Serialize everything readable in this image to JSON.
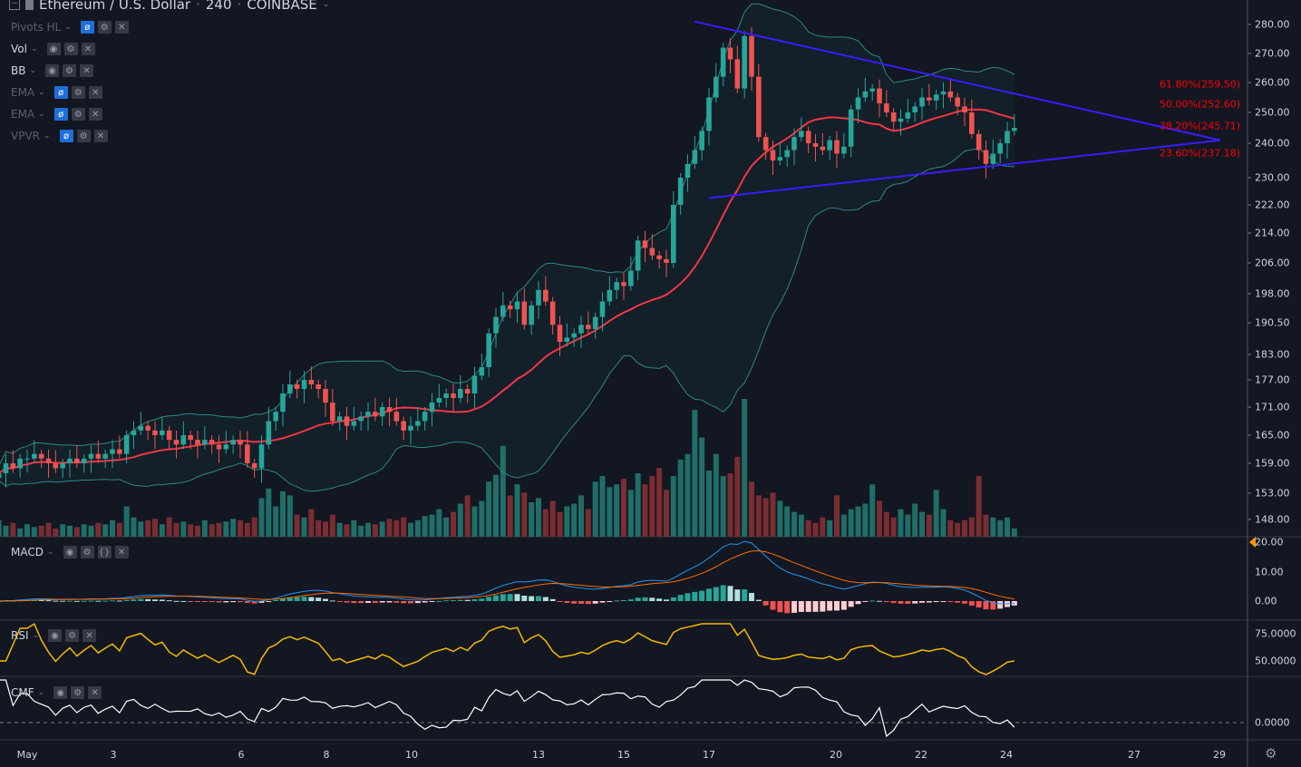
{
  "header": {
    "symbol": "Ethereum / U.S. Dollar",
    "interval": "240",
    "exchange": "COINBASE"
  },
  "indicators": [
    {
      "label": "Pivots HL",
      "hidden": true
    },
    {
      "label": "Vol",
      "hidden": false
    },
    {
      "label": "BB",
      "hidden": false
    },
    {
      "label": "EMA",
      "hidden": true
    },
    {
      "label": "EMA",
      "hidden": true
    },
    {
      "label": "VPVR",
      "hidden": true
    }
  ],
  "panes": {
    "macd": "MACD",
    "rsi": "RSI",
    "cmf": "CMF"
  },
  "colors": {
    "bg": "#131722",
    "up": "#26a69a",
    "down": "#ef5350",
    "ema": "#f23645",
    "bb": "#2a8a84",
    "trendline": "#3a1cff",
    "macd": "#2196f3",
    "signal": "#ff6d00",
    "rsi": "#f5b800",
    "cmf": "#ffffff",
    "fib": "#ff0000"
  },
  "chart_data": {
    "type": "candlestick",
    "price_scale": [
      "280.00",
      "270.00",
      "260.00",
      "250.00",
      "240.00",
      "230.00",
      "222.00",
      "214.00",
      "206.00",
      "198.00",
      "190.50",
      "183.00",
      "177.00",
      "171.00",
      "165.00",
      "159.00",
      "153.00",
      "148.00"
    ],
    "macd_scale": [
      "20.00",
      "10.00",
      "0.00"
    ],
    "rsi_scale": [
      "75.0000",
      "50.0000"
    ],
    "cmf_scale": [
      "0.0000"
    ],
    "time_labels": [
      "May",
      "3",
      "6",
      "8",
      "10",
      "13",
      "15",
      "17",
      "20",
      "22",
      "24",
      "27",
      "29"
    ],
    "closes": [
      157,
      159,
      158,
      160,
      160,
      161,
      160,
      159,
      158,
      159,
      160,
      159,
      160,
      161,
      160,
      161,
      162,
      161,
      165,
      166,
      167,
      166,
      165,
      166,
      164,
      163,
      165,
      164,
      163,
      164,
      163,
      162,
      163,
      164,
      163,
      159,
      158,
      163,
      168,
      170,
      174,
      176,
      175,
      177,
      176,
      175,
      172,
      168,
      169,
      167,
      168,
      169,
      170,
      169,
      171,
      170,
      168,
      166,
      167,
      168,
      170,
      172,
      173,
      174,
      173,
      175,
      174,
      178,
      180,
      188,
      192,
      195,
      194,
      196,
      190,
      195,
      199,
      196,
      190,
      186,
      187,
      188,
      190,
      189,
      192,
      196,
      199,
      201,
      200,
      204,
      212,
      210,
      208,
      207,
      206,
      222,
      230,
      234,
      238,
      244,
      255,
      262,
      272,
      268,
      258,
      276,
      262,
      242,
      238,
      235,
      236,
      238,
      242,
      244,
      240,
      239,
      238,
      241,
      237,
      239,
      251,
      255,
      257,
      258,
      253,
      250,
      247,
      248,
      250,
      252,
      255,
      254,
      256,
      257,
      255,
      252,
      250,
      243,
      238,
      234,
      237,
      240,
      244,
      245
    ],
    "volume": [
      12,
      8,
      10,
      6,
      9,
      7,
      8,
      10,
      6,
      9,
      8,
      7,
      9,
      8,
      10,
      9,
      12,
      10,
      22,
      14,
      11,
      12,
      13,
      9,
      14,
      10,
      11,
      9,
      8,
      12,
      9,
      10,
      11,
      13,
      12,
      10,
      14,
      28,
      35,
      22,
      33,
      30,
      16,
      14,
      20,
      12,
      11,
      16,
      10,
      9,
      12,
      8,
      10,
      9,
      11,
      13,
      12,
      14,
      10,
      12,
      15,
      16,
      20,
      14,
      18,
      24,
      30,
      22,
      26,
      40,
      45,
      66,
      30,
      38,
      32,
      25,
      28,
      20,
      26,
      18,
      22,
      24,
      30,
      20,
      40,
      44,
      36,
      38,
      42,
      34,
      46,
      38,
      44,
      50,
      34,
      44,
      56,
      60,
      92,
      72,
      48,
      60,
      44,
      46,
      58,
      100,
      40,
      30,
      28,
      32,
      26,
      22,
      18,
      16,
      12,
      10,
      14,
      12,
      30,
      16,
      20,
      22,
      24,
      38,
      26,
      18,
      14,
      20,
      16,
      24,
      18,
      16,
      34,
      20,
      12,
      10,
      12,
      14,
      44,
      16,
      14,
      12,
      14,
      6
    ],
    "triangle_upper": [
      [
        "May 16 16:00",
        281
      ],
      [
        "May 29 00:00",
        241
      ]
    ],
    "triangle_lower": [
      [
        "May 17 00:00",
        224
      ],
      [
        "May 29 00:00",
        241
      ]
    ],
    "fib_levels": [
      {
        "label": "61.80%(259.50)",
        "price": 259.5
      },
      {
        "label": "50.00%(252.60)",
        "price": 252.6
      },
      {
        "label": "38.20%(245.71)",
        "price": 245.71
      },
      {
        "label": "23.60%(237.18)",
        "price": 237.18
      }
    ]
  }
}
